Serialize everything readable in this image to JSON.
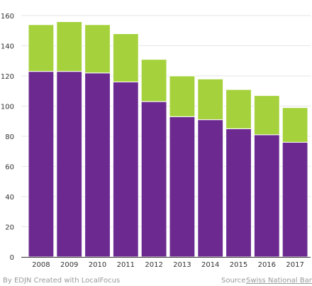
{
  "chart_data": {
    "type": "bar",
    "stacked": true,
    "categories": [
      "2008",
      "2009",
      "2010",
      "2011",
      "2012",
      "2013",
      "2014",
      "2015",
      "2016",
      "2017"
    ],
    "series": [
      {
        "values": [
          123,
          123,
          122,
          116,
          103,
          93,
          91,
          85,
          81,
          76
        ],
        "color": "#6c2a91"
      },
      {
        "values": [
          31,
          33,
          32,
          32,
          28,
          27,
          27,
          26,
          26,
          23
        ],
        "color": "#a5d23c"
      }
    ],
    "title": "",
    "xlabel": "",
    "ylabel": "",
    "ylim": [
      0,
      160
    ],
    "yticks": [
      0,
      20,
      40,
      60,
      80,
      100,
      120,
      140,
      160
    ],
    "grid": true,
    "legend": "none"
  },
  "footer": {
    "credit": "By EDJN Created with LocalFocus",
    "source_prefix": "Source",
    "source_link": "Swiss National Ban"
  }
}
